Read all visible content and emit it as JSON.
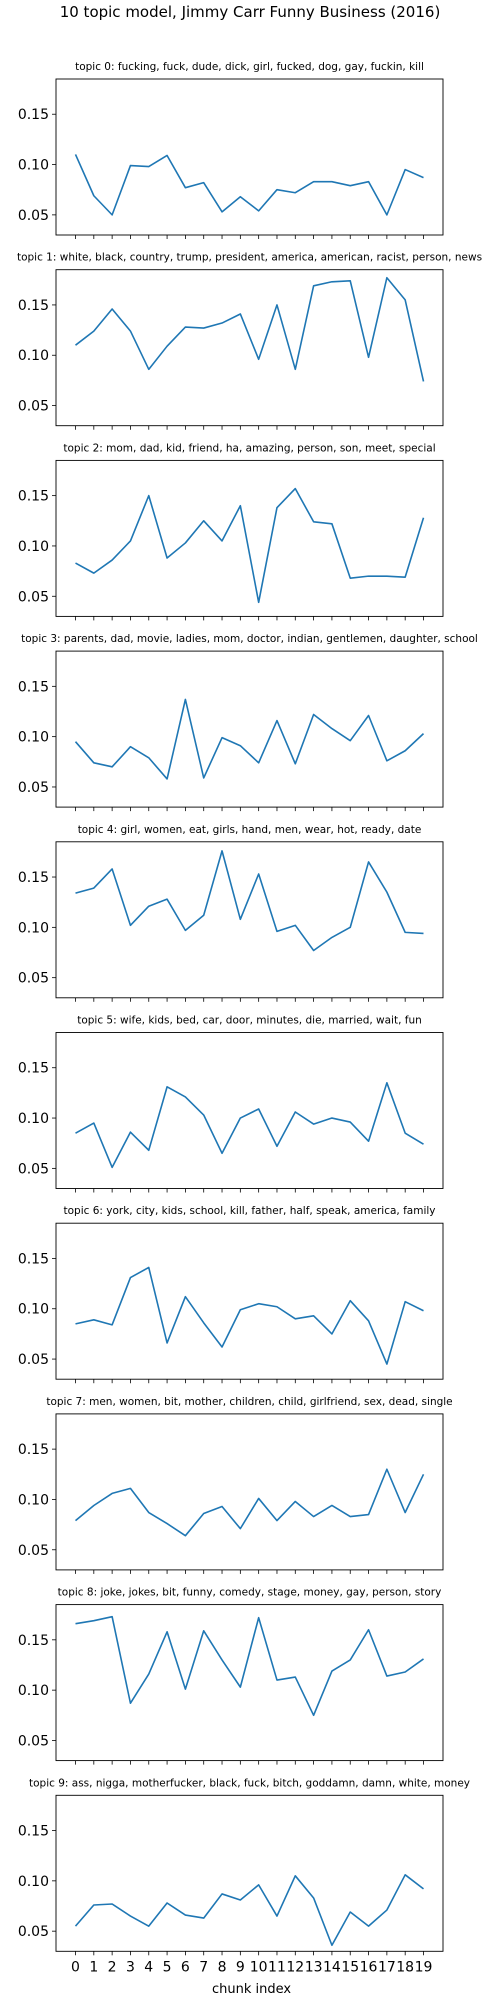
{
  "figure": {
    "suptitle": "10 topic model, Jimmy Carr Funny Business (2016)",
    "xlabel": "chunk index"
  },
  "chart_data": [
    {
      "type": "line",
      "title": "topic 0: fucking, fuck, dude, dick, girl, fucked, dog, gay, fuckin, kill",
      "x": [
        0,
        1,
        2,
        3,
        4,
        5,
        6,
        7,
        8,
        9,
        10,
        11,
        12,
        13,
        14,
        15,
        16,
        17,
        18,
        19
      ],
      "values": [
        0.11,
        0.069,
        0.05,
        0.099,
        0.098,
        0.109,
        0.077,
        0.082,
        0.053,
        0.068,
        0.054,
        0.075,
        0.072,
        0.083,
        0.083,
        0.079,
        0.083,
        0.05,
        0.095,
        0.087
      ],
      "ylim": [
        0.03,
        0.185
      ],
      "yticks": [
        "0.05",
        "0.10",
        "0.15"
      ],
      "color": "#1f77b4"
    },
    {
      "type": "line",
      "title": "topic 1: white, black, country, trump, president, america, american, racist, person, news",
      "x": [
        0,
        1,
        2,
        3,
        4,
        5,
        6,
        7,
        8,
        9,
        10,
        11,
        12,
        13,
        14,
        15,
        16,
        17,
        18,
        19
      ],
      "values": [
        0.11,
        0.124,
        0.146,
        0.124,
        0.086,
        0.109,
        0.128,
        0.127,
        0.132,
        0.141,
        0.096,
        0.15,
        0.086,
        0.169,
        0.173,
        0.174,
        0.098,
        0.177,
        0.155,
        0.074
      ],
      "ylim": [
        0.03,
        0.185
      ],
      "yticks": [
        "0.05",
        "0.10",
        "0.15"
      ],
      "color": "#1f77b4"
    },
    {
      "type": "line",
      "title": "topic 2: mom, dad, kid, friend, ha, amazing, person, son, meet, special",
      "x": [
        0,
        1,
        2,
        3,
        4,
        5,
        6,
        7,
        8,
        9,
        10,
        11,
        12,
        13,
        14,
        15,
        16,
        17,
        18,
        19
      ],
      "values": [
        0.083,
        0.073,
        0.086,
        0.105,
        0.15,
        0.088,
        0.103,
        0.125,
        0.105,
        0.14,
        0.044,
        0.138,
        0.157,
        0.124,
        0.122,
        0.068,
        0.07,
        0.07,
        0.069,
        0.128
      ],
      "ylim": [
        0.03,
        0.185
      ],
      "yticks": [
        "0.05",
        "0.10",
        "0.15"
      ],
      "color": "#1f77b4"
    },
    {
      "type": "line",
      "title": "topic 3: parents, dad, movie, ladies, mom, doctor, indian, gentlemen, daughter, school",
      "x": [
        0,
        1,
        2,
        3,
        4,
        5,
        6,
        7,
        8,
        9,
        10,
        11,
        12,
        13,
        14,
        15,
        16,
        17,
        18,
        19
      ],
      "values": [
        0.095,
        0.074,
        0.07,
        0.09,
        0.079,
        0.058,
        0.137,
        0.059,
        0.099,
        0.091,
        0.074,
        0.116,
        0.073,
        0.122,
        0.108,
        0.096,
        0.121,
        0.076,
        0.086,
        0.103
      ],
      "ylim": [
        0.03,
        0.185
      ],
      "yticks": [
        "0.05",
        "0.10",
        "0.15"
      ],
      "color": "#1f77b4"
    },
    {
      "type": "line",
      "title": "topic 4: girl, women, eat, girls, hand, men, wear, hot, ready, date",
      "x": [
        0,
        1,
        2,
        3,
        4,
        5,
        6,
        7,
        8,
        9,
        10,
        11,
        12,
        13,
        14,
        15,
        16,
        17,
        18,
        19
      ],
      "values": [
        0.134,
        0.139,
        0.158,
        0.102,
        0.121,
        0.128,
        0.097,
        0.112,
        0.176,
        0.108,
        0.153,
        0.096,
        0.102,
        0.077,
        0.09,
        0.1,
        0.165,
        0.135,
        0.095,
        0.094
      ],
      "ylim": [
        0.03,
        0.185
      ],
      "yticks": [
        "0.05",
        "0.10",
        "0.15"
      ],
      "color": "#1f77b4"
    },
    {
      "type": "line",
      "title": "topic 5: wife, kids, bed, car, door, minutes, die, married, wait, fun",
      "x": [
        0,
        1,
        2,
        3,
        4,
        5,
        6,
        7,
        8,
        9,
        10,
        11,
        12,
        13,
        14,
        15,
        16,
        17,
        18,
        19
      ],
      "values": [
        0.085,
        0.095,
        0.051,
        0.086,
        0.068,
        0.131,
        0.121,
        0.103,
        0.065,
        0.1,
        0.109,
        0.072,
        0.106,
        0.094,
        0.1,
        0.096,
        0.077,
        0.135,
        0.085,
        0.074
      ],
      "ylim": [
        0.03,
        0.185
      ],
      "yticks": [
        "0.05",
        "0.10",
        "0.15"
      ],
      "color": "#1f77b4"
    },
    {
      "type": "line",
      "title": "topic 6: york, city, kids, school, kill, father, half, speak, america, family",
      "x": [
        0,
        1,
        2,
        3,
        4,
        5,
        6,
        7,
        8,
        9,
        10,
        11,
        12,
        13,
        14,
        15,
        16,
        17,
        18,
        19
      ],
      "values": [
        0.085,
        0.089,
        0.084,
        0.131,
        0.141,
        0.066,
        0.112,
        0.086,
        0.062,
        0.099,
        0.105,
        0.102,
        0.09,
        0.093,
        0.075,
        0.108,
        0.088,
        0.045,
        0.107,
        0.098
      ],
      "ylim": [
        0.03,
        0.185
      ],
      "yticks": [
        "0.05",
        "0.10",
        "0.15"
      ],
      "color": "#1f77b4"
    },
    {
      "type": "line",
      "title": "topic 7: men, women, bit, mother, children, child, girlfriend, sex, dead, single",
      "x": [
        0,
        1,
        2,
        3,
        4,
        5,
        6,
        7,
        8,
        9,
        10,
        11,
        12,
        13,
        14,
        15,
        16,
        17,
        18,
        19
      ],
      "values": [
        0.079,
        0.094,
        0.106,
        0.111,
        0.087,
        0.076,
        0.064,
        0.086,
        0.093,
        0.071,
        0.101,
        0.079,
        0.098,
        0.083,
        0.094,
        0.083,
        0.085,
        0.13,
        0.087,
        0.125
      ],
      "ylim": [
        0.03,
        0.185
      ],
      "yticks": [
        "0.05",
        "0.10",
        "0.15"
      ],
      "color": "#1f77b4"
    },
    {
      "type": "line",
      "title": "topic 8: joke, jokes, bit, funny, comedy, stage, money, gay, person, story",
      "x": [
        0,
        1,
        2,
        3,
        4,
        5,
        6,
        7,
        8,
        9,
        10,
        11,
        12,
        13,
        14,
        15,
        16,
        17,
        18,
        19
      ],
      "values": [
        0.166,
        0.169,
        0.173,
        0.087,
        0.116,
        0.158,
        0.101,
        0.159,
        0.13,
        0.103,
        0.172,
        0.11,
        0.113,
        0.075,
        0.119,
        0.13,
        0.16,
        0.114,
        0.118,
        0.131
      ],
      "ylim": [
        0.03,
        0.185
      ],
      "yticks": [
        "0.05",
        "0.10",
        "0.15"
      ],
      "color": "#1f77b4"
    },
    {
      "type": "line",
      "title": "topic 9: ass, nigga, motherfucker, black, fuck, bitch, goddamn, damn, white, money",
      "x": [
        0,
        1,
        2,
        3,
        4,
        5,
        6,
        7,
        8,
        9,
        10,
        11,
        12,
        13,
        14,
        15,
        16,
        17,
        18,
        19
      ],
      "values": [
        0.055,
        0.076,
        0.077,
        0.065,
        0.055,
        0.078,
        0.066,
        0.063,
        0.087,
        0.081,
        0.096,
        0.065,
        0.105,
        0.083,
        0.036,
        0.069,
        0.055,
        0.071,
        0.106,
        0.092
      ],
      "ylim": [
        0.03,
        0.185
      ],
      "yticks": [
        "0.05",
        "0.10",
        "0.15"
      ],
      "color": "#1f77b4"
    }
  ]
}
